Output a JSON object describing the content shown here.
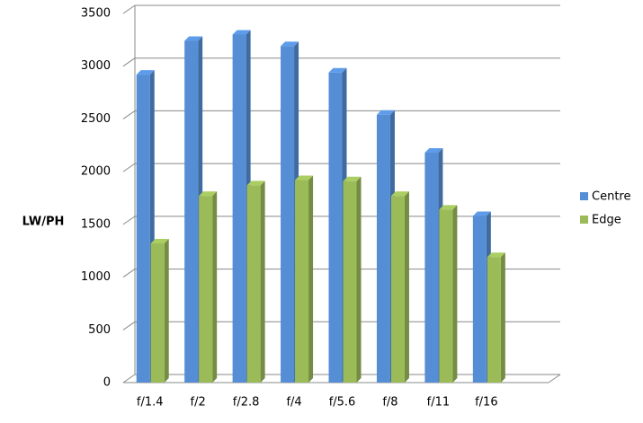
{
  "chart_data": {
    "type": "bar3d",
    "y_label": "LW/PH",
    "categories": [
      "f/1.4",
      "f/2",
      "f/2.8",
      "f/4",
      "f/5.6",
      "f/8",
      "f/11",
      "f/16"
    ],
    "series": [
      {
        "name": "Centre",
        "color": "#558ed5",
        "values": [
          2920,
          3240,
          3300,
          3190,
          2940,
          2540,
          2180,
          1580
        ]
      },
      {
        "name": "Edge",
        "color": "#9bbb59",
        "values": [
          1320,
          1770,
          1870,
          1920,
          1910,
          1770,
          1640,
          1190
        ]
      }
    ],
    "ylim": [
      0,
      3500
    ],
    "yticks": [
      0,
      500,
      1000,
      1500,
      2000,
      2500,
      3000,
      3500
    ],
    "grid": true,
    "legend": "right"
  }
}
